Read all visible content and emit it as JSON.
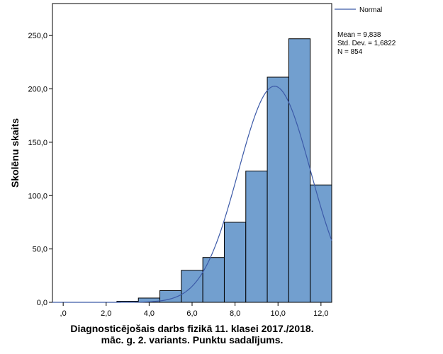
{
  "chart_data": {
    "type": "bar",
    "subtype": "histogram",
    "ylabel": "Skolēnu skaits",
    "xlabel_lines": [
      "Diagnosticējošais darbs fizikā 11. klasei 2017./2018.",
      "māc. g. 2. variants. Punktu sadalījums."
    ],
    "bin_width": 1,
    "bins": [
      {
        "x": 0,
        "value": 0
      },
      {
        "x": 1,
        "value": 0
      },
      {
        "x": 2,
        "value": 0
      },
      {
        "x": 3,
        "value": 1
      },
      {
        "x": 4,
        "value": 4
      },
      {
        "x": 5,
        "value": 11
      },
      {
        "x": 6,
        "value": 30
      },
      {
        "x": 7,
        "value": 42
      },
      {
        "x": 8,
        "value": 75
      },
      {
        "x": 9,
        "value": 123
      },
      {
        "x": 10,
        "value": 211
      },
      {
        "x": 11,
        "value": 247
      },
      {
        "x": 12,
        "value": 110
      }
    ],
    "xlim": [
      -0.5,
      12.5
    ],
    "ylim": [
      0,
      280
    ],
    "xticks": [
      0,
      2,
      4,
      6,
      8,
      10,
      12
    ],
    "xtick_labels": [
      ",0",
      "2,0",
      "4,0",
      "6,0",
      "8,0",
      "10,0",
      "12,0"
    ],
    "yticks": [
      0,
      50,
      100,
      150,
      200,
      250
    ],
    "ytick_labels": [
      "0,0",
      "50,0",
      "100,0",
      "150,0",
      "200,0",
      "250,0"
    ],
    "bar_color": "#729fcf",
    "curve_color": "#3c5aa8",
    "normal_curve": {
      "mean": 9.838,
      "sd": 1.6822,
      "n": 854
    },
    "legend": {
      "label": "Normal",
      "placement": "top-right"
    },
    "stats_lines": [
      "Mean = 9,838",
      "Std. Dev. = 1,6822",
      "N = 854"
    ]
  }
}
